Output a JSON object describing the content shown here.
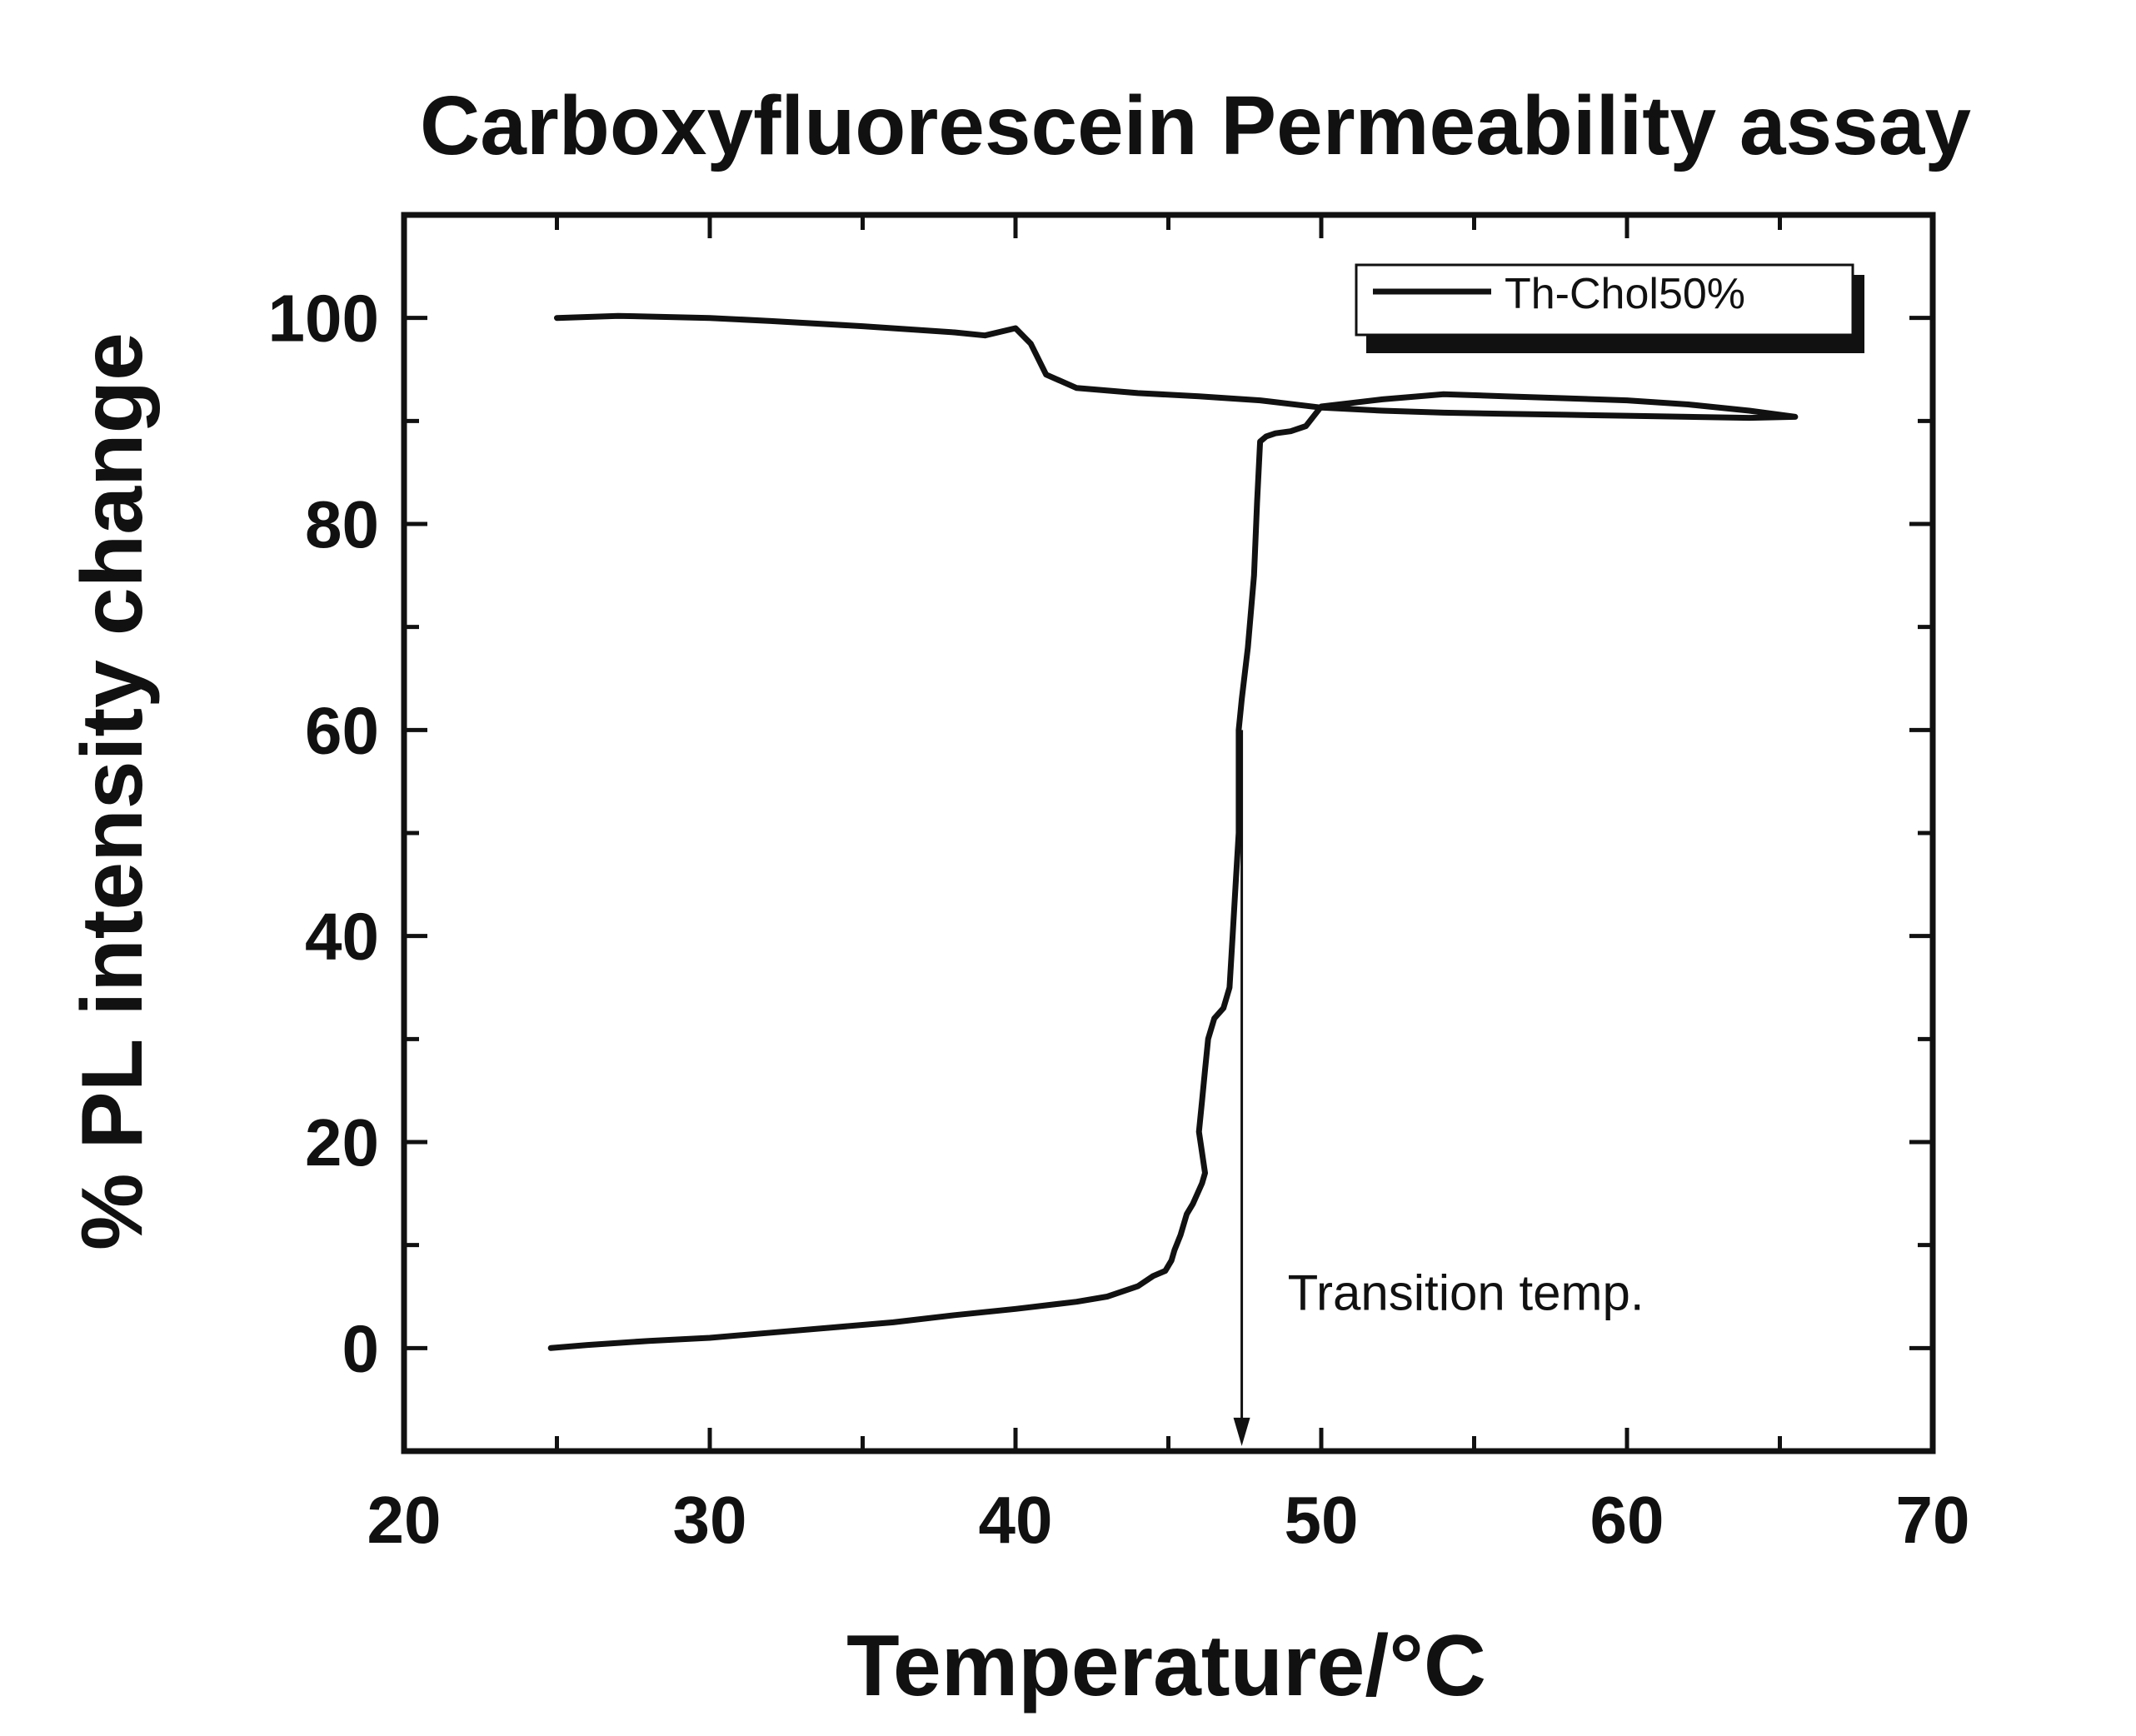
{
  "chart_data": {
    "type": "line",
    "title": "Carboxyfluorescein Permeability assay",
    "xlabel": "Temperature/°C",
    "ylabel": "% PL intensity change",
    "xlim": [
      20,
      70
    ],
    "ylim": [
      -10,
      110
    ],
    "xticks": [
      20,
      30,
      40,
      50,
      60,
      70
    ],
    "xtick_labels": [
      "20",
      "30",
      "40",
      "50",
      "60",
      "70"
    ],
    "yticks": [
      0,
      20,
      40,
      60,
      80,
      100
    ],
    "ytick_labels": [
      "0",
      "20",
      "40",
      "60",
      "80",
      "100"
    ],
    "grid": false,
    "legend_position": "top-right",
    "series": [
      {
        "name": "Th-Chol50%",
        "color": "#111111",
        "x": [
          25,
          27,
          30,
          32,
          35,
          38,
          39,
          40,
          40.5,
          41,
          42,
          44,
          46,
          48,
          50,
          52,
          54,
          56,
          58,
          60,
          62,
          64,
          65.5,
          64,
          62,
          60,
          58,
          56,
          54,
          52,
          50,
          49.5,
          49,
          48.5,
          48.2,
          48.0,
          47.9,
          47.8,
          47.6,
          47.4,
          47.3,
          47.3,
          47.2,
          47.1,
          47.0,
          46.8,
          46.5,
          46.3,
          46.2,
          46.1,
          46.0,
          46.2,
          46.1,
          45.8,
          45.6,
          45.4,
          45.2,
          45.1,
          44.9,
          44.5,
          44.0,
          43.0,
          42.0,
          40.0,
          38.0,
          36.0,
          34.0,
          32.0,
          30.0,
          28.0,
          26.0,
          24.8
        ],
        "y": [
          100,
          100.2,
          100,
          99.7,
          99.2,
          98.6,
          98.3,
          99,
          97.5,
          94.5,
          93.2,
          92.7,
          92.4,
          92.0,
          91.3,
          91.0,
          90.8,
          90.7,
          90.6,
          90.5,
          90.4,
          90.3,
          90.4,
          91.0,
          91.6,
          92.0,
          92.2,
          92.4,
          92.6,
          92.1,
          91.4,
          89.5,
          89.0,
          88.8,
          88.5,
          88.0,
          82.0,
          75.0,
          68.0,
          63.0,
          60.0,
          50.0,
          45.0,
          40.0,
          35.0,
          33.0,
          32.0,
          30.0,
          27.0,
          24.0,
          21.0,
          17.0,
          16.0,
          14.0,
          13.0,
          11.0,
          9.5,
          8.5,
          7.5,
          7.0,
          6.0,
          5.0,
          4.5,
          3.8,
          3.2,
          2.5,
          2.0,
          1.5,
          1.0,
          0.7,
          0.3,
          0.0
        ]
      }
    ],
    "annotations": [
      {
        "text": "Transition temp.",
        "x": 47.4,
        "y": 5.5,
        "arrow_to": [
          47.4,
          -9.5
        ]
      }
    ]
  }
}
